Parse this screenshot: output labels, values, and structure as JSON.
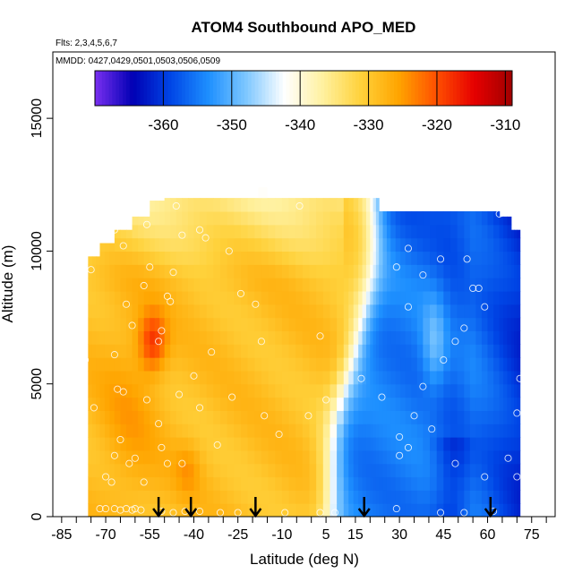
{
  "chart_data": {
    "type": "heatmap",
    "title": "ATOM4 Southbound APO_MED",
    "subtitle_flights": "Flts: 2,3,4,5,6,7",
    "subtitle_dates": "MMDD: 0427,0429,0501,0503,0506,0509",
    "xlabel": "Latitude (deg N)",
    "ylabel": "Altitude (m)",
    "xlim": [
      -88,
      83
    ],
    "ylim": [
      0,
      17500
    ],
    "xticks": [
      -85,
      -70,
      -55,
      -40,
      -25,
      -10,
      5,
      15,
      30,
      45,
      60,
      75
    ],
    "xticks_minor": [
      -80,
      -75,
      -65,
      -60,
      -50,
      -45,
      -35,
      -30,
      -20,
      -15,
      -5,
      0,
      10,
      20,
      25,
      35,
      40,
      50,
      55,
      65,
      70,
      80
    ],
    "yticks": [
      0,
      5000,
      10000,
      15000
    ],
    "colorbar": {
      "range": [
        -370,
        -309
      ],
      "ticks": [
        -360,
        -350,
        -340,
        -330,
        -320,
        -310
      ],
      "colors": [
        "#7a2ff0",
        "#0000b4",
        "#0046e6",
        "#1e90ff",
        "#7fc8ff",
        "#ffffff",
        "#fff1a0",
        "#ffd23c",
        "#ffa500",
        "#ff5000",
        "#e60000",
        "#a00000"
      ]
    },
    "arrows_lat": [
      -52,
      -41,
      -19,
      18,
      61
    ],
    "grid": {
      "lat_edges": [
        -76,
        -72,
        -67,
        -61,
        -55,
        -50,
        -44,
        -38,
        -31,
        -24,
        -17,
        -10,
        -3,
        4,
        11,
        16,
        20,
        23,
        27,
        32,
        38,
        45,
        52,
        58,
        64,
        68,
        71
      ],
      "alt_edges": [
        0,
        500,
        1000,
        1500,
        2000,
        2500,
        3000,
        3500,
        4000,
        4500,
        5000,
        5500,
        6000,
        6500,
        7000,
        7500,
        8000,
        8500,
        9000,
        9500,
        10000,
        10500,
        11000,
        11500,
        12000
      ],
      "top_alt_by_col": [
        9800,
        10300,
        10800,
        11300,
        11900,
        12000,
        12000,
        12000,
        12000,
        12000,
        12000,
        12000,
        12000,
        12000,
        12000,
        12000,
        12000,
        11500,
        11500,
        11500,
        11500,
        11500,
        11500,
        11500,
        11300,
        10800
      ]
    },
    "samples": [
      {
        "lat": -72,
        "alt": 300
      },
      {
        "lat": -70,
        "alt": 300
      },
      {
        "lat": -67,
        "alt": 300
      },
      {
        "lat": -65,
        "alt": 250
      },
      {
        "lat": -63,
        "alt": 300
      },
      {
        "lat": -61,
        "alt": 250
      },
      {
        "lat": -60,
        "alt": 300
      },
      {
        "lat": -58,
        "alt": 250
      },
      {
        "lat": -51,
        "alt": 200
      },
      {
        "lat": -47,
        "alt": 150
      },
      {
        "lat": -43,
        "alt": 200
      },
      {
        "lat": -38,
        "alt": 200
      },
      {
        "lat": -31,
        "alt": 150
      },
      {
        "lat": -25,
        "alt": 150
      },
      {
        "lat": -9,
        "alt": 150
      },
      {
        "lat": 3,
        "alt": 150
      },
      {
        "lat": 8,
        "alt": 150
      },
      {
        "lat": 29,
        "alt": 300
      },
      {
        "lat": 44,
        "alt": 150
      },
      {
        "lat": 52,
        "alt": 150
      },
      {
        "lat": 62,
        "alt": 200
      },
      {
        "lat": -68,
        "alt": 1300
      },
      {
        "lat": -57,
        "alt": 1300
      },
      {
        "lat": -70,
        "alt": 1500
      },
      {
        "lat": -77,
        "alt": 5900
      },
      {
        "lat": -74,
        "alt": 4100
      },
      {
        "lat": -67,
        "alt": 6100
      },
      {
        "lat": -66,
        "alt": 4800
      },
      {
        "lat": -67,
        "alt": 2300
      },
      {
        "lat": -65,
        "alt": 2900
      },
      {
        "lat": -62,
        "alt": 2000
      },
      {
        "lat": -60,
        "alt": 2200
      },
      {
        "lat": -61,
        "alt": 7200
      },
      {
        "lat": -52,
        "alt": 6600
      },
      {
        "lat": -52,
        "alt": 3500
      },
      {
        "lat": -51,
        "alt": 2600
      },
      {
        "lat": -49,
        "alt": 2000
      },
      {
        "lat": -44,
        "alt": 2000
      },
      {
        "lat": -45,
        "alt": 4600
      },
      {
        "lat": -51,
        "alt": 7000
      },
      {
        "lat": -56,
        "alt": 4400
      },
      {
        "lat": -64,
        "alt": 4700
      },
      {
        "lat": -38,
        "alt": 4100
      },
      {
        "lat": -40,
        "alt": 5300
      },
      {
        "lat": -34,
        "alt": 6200
      },
      {
        "lat": -27,
        "alt": 4500
      },
      {
        "lat": -32,
        "alt": 2700
      },
      {
        "lat": -17,
        "alt": 6600
      },
      {
        "lat": -11,
        "alt": 3100
      },
      {
        "lat": -16,
        "alt": 3800
      },
      {
        "lat": -63,
        "alt": 8000
      },
      {
        "lat": -57,
        "alt": 8700
      },
      {
        "lat": -48,
        "alt": 8100
      },
      {
        "lat": -49,
        "alt": 8300
      },
      {
        "lat": -24,
        "alt": 8400
      },
      {
        "lat": -44,
        "alt": 10600
      },
      {
        "lat": -38,
        "alt": 10800
      },
      {
        "lat": -36,
        "alt": 10500
      },
      {
        "lat": -28,
        "alt": 10000
      },
      {
        "lat": -67,
        "alt": 10800
      },
      {
        "lat": -64,
        "alt": 10200
      },
      {
        "lat": -75,
        "alt": 9300
      },
      {
        "lat": -55,
        "alt": 9400
      },
      {
        "lat": -47,
        "alt": 9200
      },
      {
        "lat": -46,
        "alt": 11700
      },
      {
        "lat": -4,
        "alt": 11700
      },
      {
        "lat": 17,
        "alt": 5200
      },
      {
        "lat": 24,
        "alt": 4500
      },
      {
        "lat": 5,
        "alt": 4400
      },
      {
        "lat": 3,
        "alt": 6800
      },
      {
        "lat": -1,
        "alt": 3800
      },
      {
        "lat": 30,
        "alt": 3000
      },
      {
        "lat": 30,
        "alt": 2300
      },
      {
        "lat": 35,
        "alt": 3800
      },
      {
        "lat": 41,
        "alt": 3300
      },
      {
        "lat": 49,
        "alt": 2000
      },
      {
        "lat": 59,
        "alt": 1500
      },
      {
        "lat": 67,
        "alt": 2200
      },
      {
        "lat": 70,
        "alt": 1500
      },
      {
        "lat": 70,
        "alt": 3900
      },
      {
        "lat": 71,
        "alt": 5200
      },
      {
        "lat": 52,
        "alt": 7100
      },
      {
        "lat": 49,
        "alt": 6600
      },
      {
        "lat": 33,
        "alt": 7900
      },
      {
        "lat": 29,
        "alt": 9400
      },
      {
        "lat": 33,
        "alt": 10100
      },
      {
        "lat": 44,
        "alt": 9700
      },
      {
        "lat": 53,
        "alt": 9700
      },
      {
        "lat": 55,
        "alt": 8600
      },
      {
        "lat": 57,
        "alt": 8600
      },
      {
        "lat": 59,
        "alt": 7900
      },
      {
        "lat": 64,
        "alt": 11400
      },
      {
        "lat": 33,
        "alt": 2600
      },
      {
        "lat": 45,
        "alt": 5900
      },
      {
        "lat": 38,
        "alt": 4900
      },
      {
        "lat": -56,
        "alt": 11000
      },
      {
        "lat": -71,
        "alt": 11100
      },
      {
        "lat": -64,
        "alt": 11200
      },
      {
        "lat": 38,
        "alt": 9100
      },
      {
        "lat": -19,
        "alt": 8000
      }
    ]
  }
}
